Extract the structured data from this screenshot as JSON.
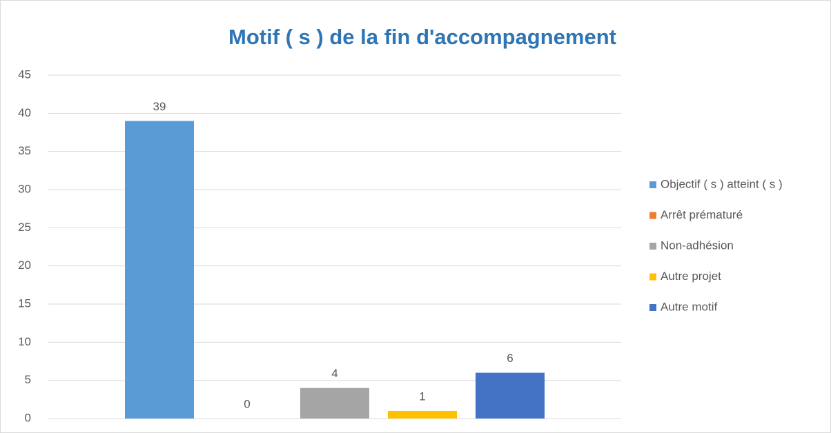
{
  "chart_data": {
    "type": "bar",
    "title": "Motif ( s ) de la fin  d'accompagnement",
    "categories": [
      null
    ],
    "series": [
      {
        "name": "Objectif ( s ) atteint ( s )",
        "color": "#5b9bd5",
        "values": [
          39
        ]
      },
      {
        "name": "Arrêt prématuré",
        "color": "#ed7d31",
        "values": [
          0
        ]
      },
      {
        "name": "Non-adhésion",
        "color": "#a5a5a5",
        "values": [
          4
        ]
      },
      {
        "name": "Autre projet",
        "color": "#ffc000",
        "values": [
          1
        ]
      },
      {
        "name": "Autre motif",
        "color": "#4472c4",
        "values": [
          6
        ]
      }
    ],
    "ylim": [
      0,
      45
    ],
    "yticks": [
      0,
      5,
      10,
      15,
      20,
      25,
      30,
      35,
      40,
      45
    ],
    "grid": true,
    "legend": "right"
  }
}
